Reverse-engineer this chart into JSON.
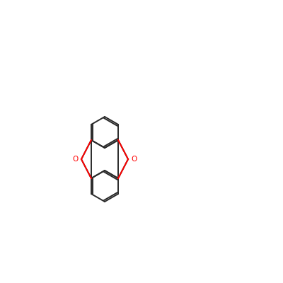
{
  "background_color": "#ffffff",
  "bond_color": "#2a2a2a",
  "N_color": "#0000cc",
  "O_color": "#ff0000",
  "lw": 1.4,
  "figsize": [
    4.0,
    4.0
  ],
  "dpi": 100
}
